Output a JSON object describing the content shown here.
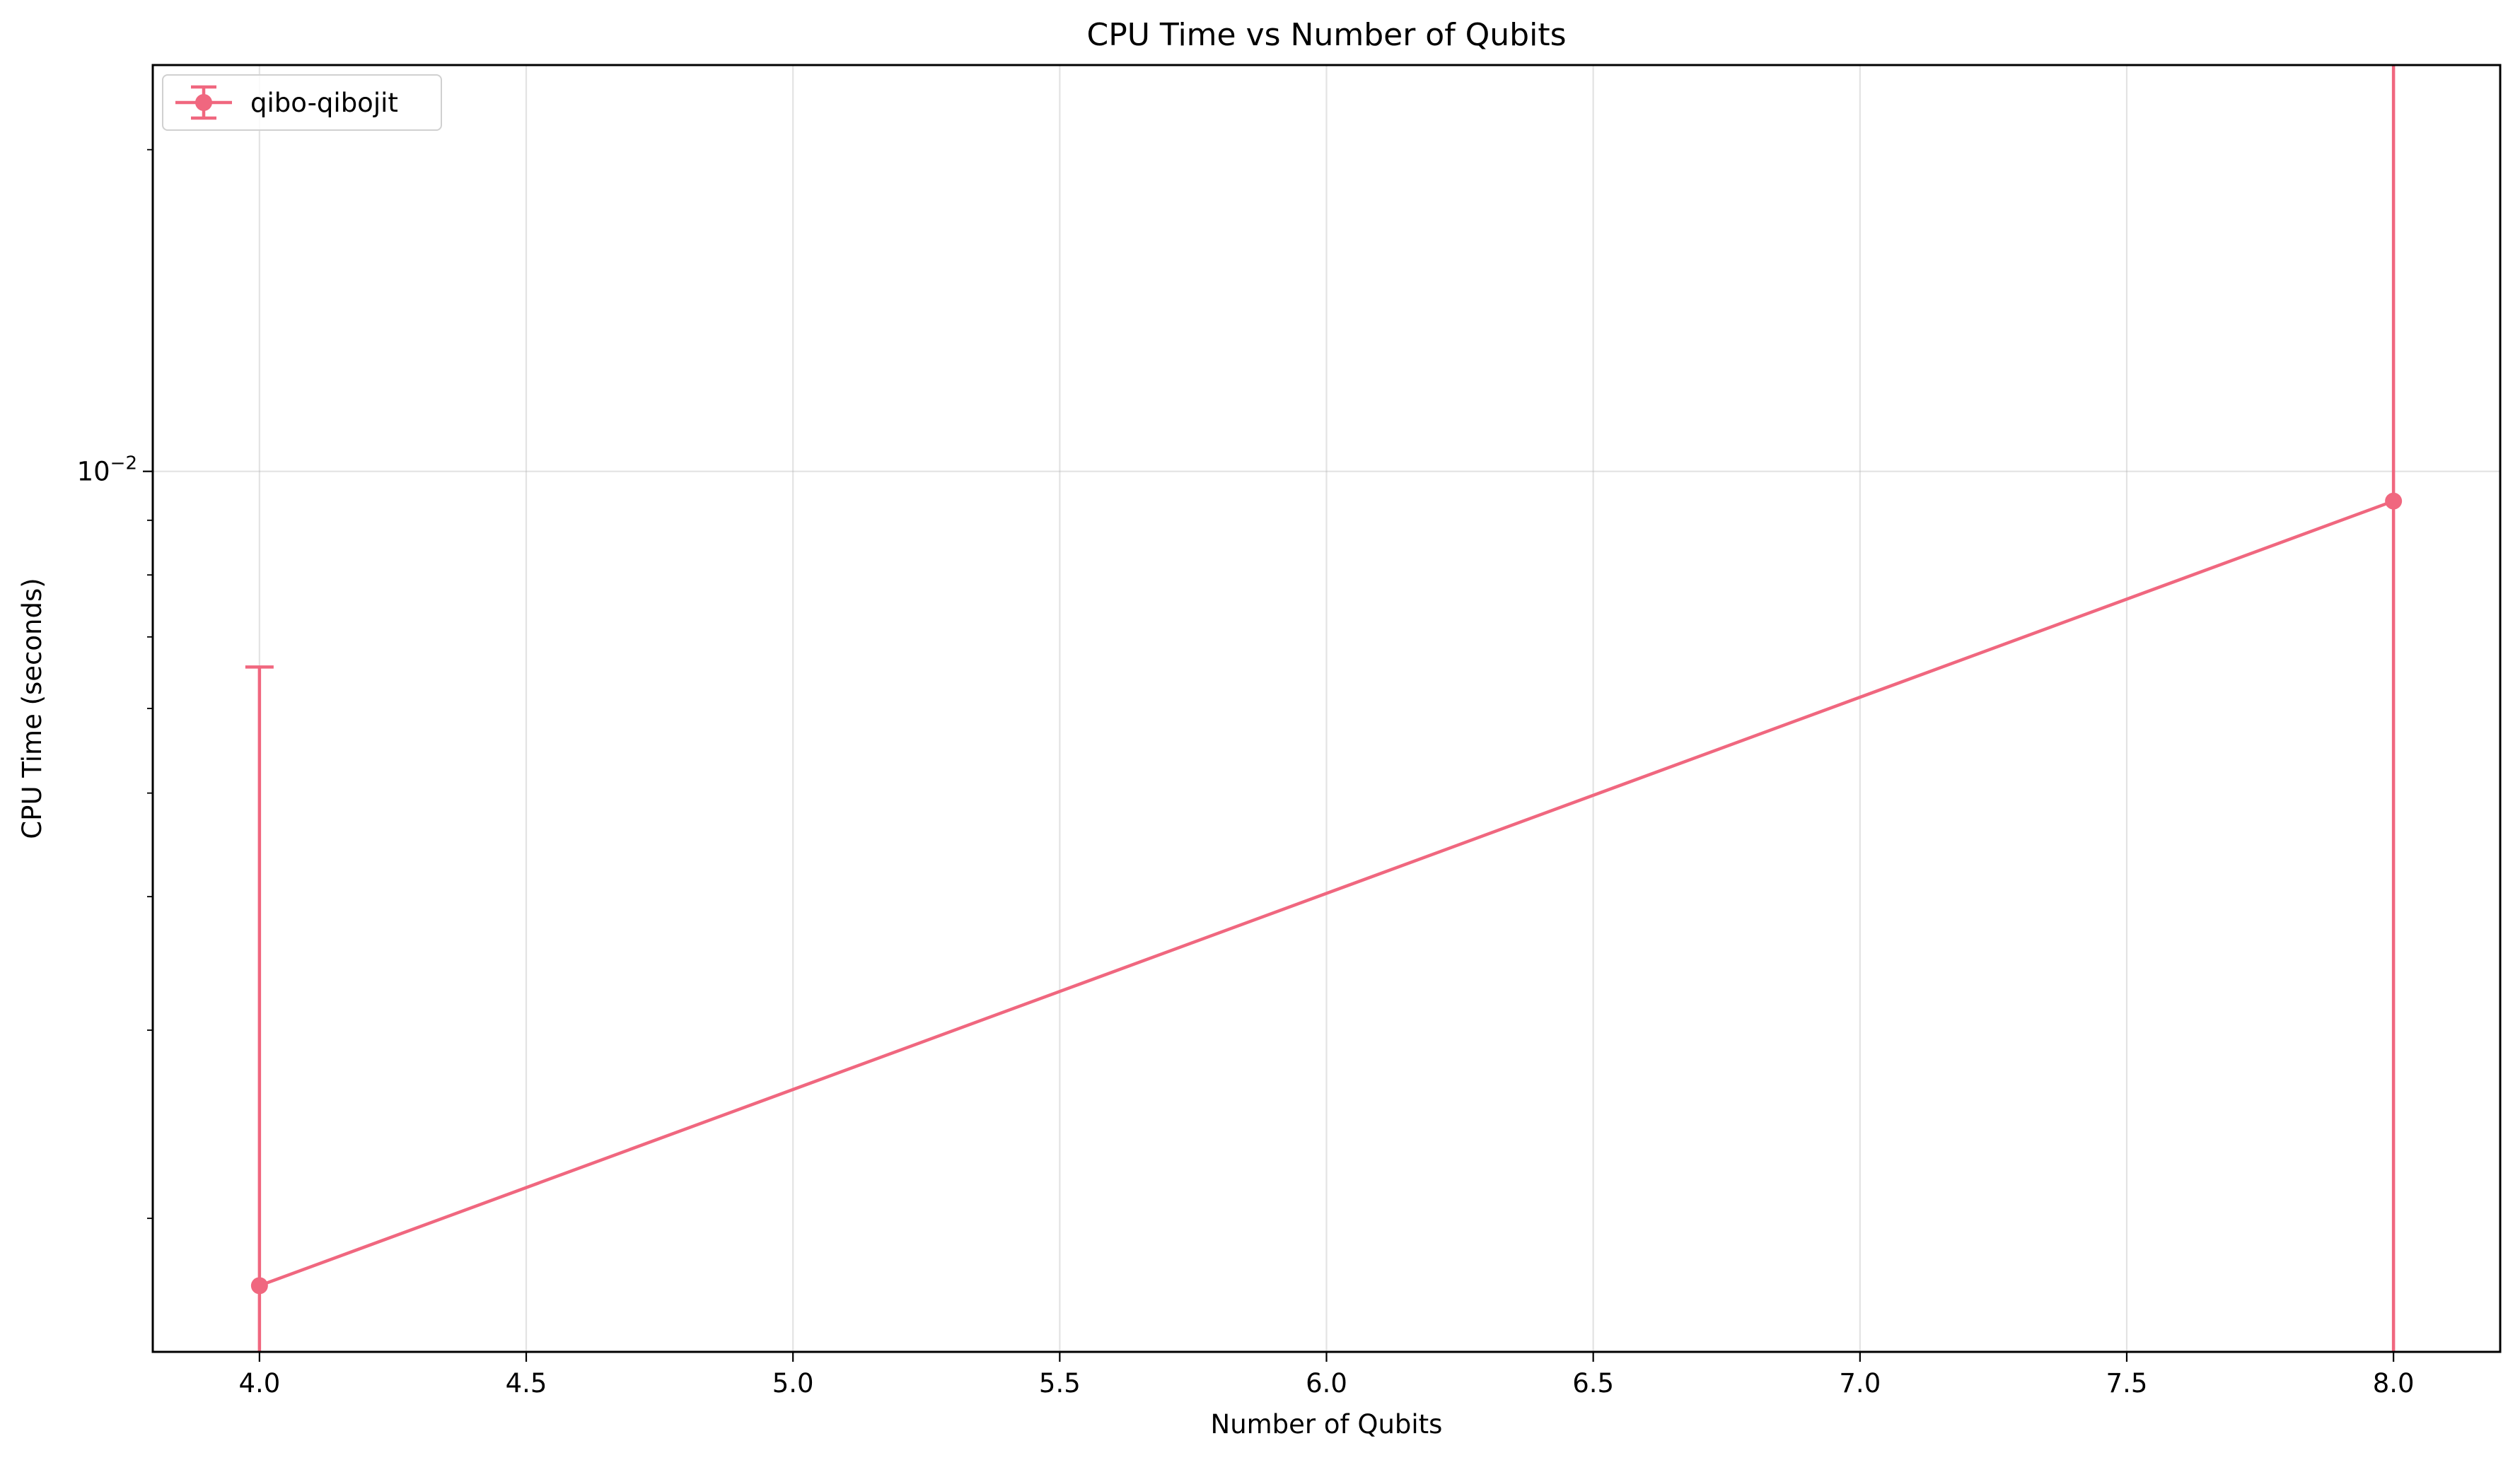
{
  "chart_data": {
    "type": "line",
    "title": "CPU Time vs Number of Qubits",
    "xlabel": "Number of Qubits",
    "ylabel": "CPU Time (seconds)",
    "xlim": [
      3.8,
      8.2
    ],
    "ylim": [
      0.0015,
      0.024
    ],
    "yscale": "log",
    "grid": true,
    "legend_position": "top-left",
    "x_ticks": [
      4.0,
      4.5,
      5.0,
      5.5,
      6.0,
      6.5,
      7.0,
      7.5,
      8.0
    ],
    "x_tick_labels": [
      "4.0",
      "4.5",
      "5.0",
      "5.5",
      "6.0",
      "6.5",
      "7.0",
      "7.5",
      "8.0"
    ],
    "y_ticks": [
      {
        "value": 0.01,
        "base": "10",
        "exponent": "−2"
      }
    ],
    "series": [
      {
        "name": "qibo-qibojit",
        "color": "#f0677f",
        "x": [
          4,
          8
        ],
        "y": [
          0.00173,
          0.00938
        ],
        "yerr_low": [
          0.00173,
          0.00938
        ],
        "yerr_high": [
          0.00483,
          0.0181
        ]
      }
    ]
  }
}
